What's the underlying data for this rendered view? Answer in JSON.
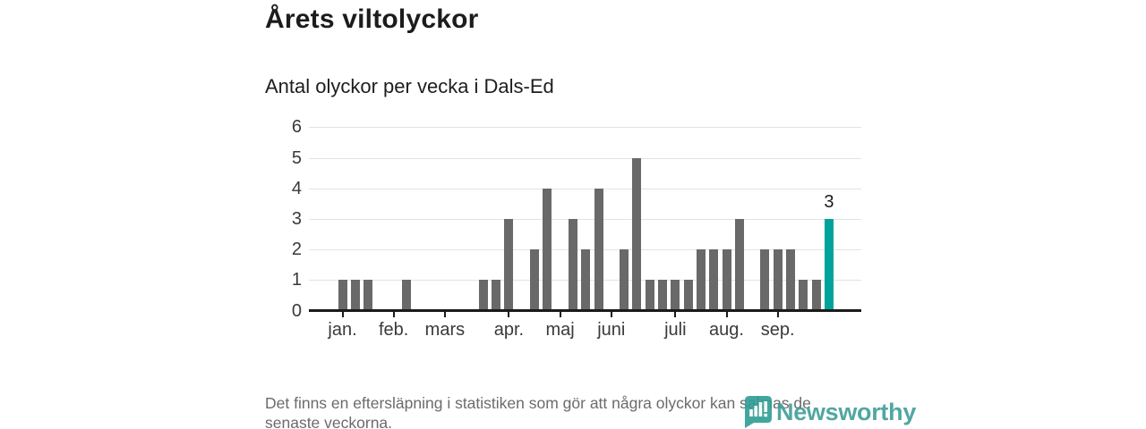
{
  "title": "Årets viltolyckor",
  "subtitle": "Antal olyckor per vecka i Dals-Ed",
  "footnote": {
    "line1": "Det finns en eftersläpning i statistiken som gör att några olyckor kan saknas de",
    "line2": "senaste veckorna."
  },
  "logo": {
    "text": "Newsworthy",
    "icon": "badge-with-bar-chart-and-exclamation"
  },
  "colors": {
    "bar": "#696969",
    "highlight": "#00a39b",
    "axis_line": "#1a1a1a",
    "gridline": "#e3e3e3",
    "tick_label": "#3a3a3a",
    "value_label": "#1a1a1a",
    "footnote_text": "#6b6b6b",
    "logo_teal": "#3f9e97",
    "logo_icon_teal": "#2f9d94"
  },
  "chart_data": {
    "type": "bar",
    "title": "Årets viltolyckor",
    "subtitle": "Antal olyckor per vecka i Dals-Ed",
    "x_unit": "week of year (vecka)",
    "first_week": 1,
    "values": [
      1,
      1,
      1,
      0,
      0,
      1,
      0,
      0,
      0,
      0,
      0,
      1,
      1,
      3,
      0,
      2,
      4,
      0,
      3,
      2,
      4,
      0,
      2,
      5,
      1,
      1,
      1,
      1,
      2,
      2,
      2,
      3,
      0,
      2,
      2,
      2,
      1,
      1,
      3
    ],
    "month_ticks": [
      {
        "label": "jan.",
        "week": 1
      },
      {
        "label": "feb.",
        "week": 5
      },
      {
        "label": "mars",
        "week": 9
      },
      {
        "label": "apr.",
        "week": 14
      },
      {
        "label": "maj",
        "week": 18
      },
      {
        "label": "juni",
        "week": 22
      },
      {
        "label": "juli",
        "week": 27
      },
      {
        "label": "aug.",
        "week": 31
      },
      {
        "label": "sep.",
        "week": 35
      }
    ],
    "ylim": [
      0,
      6
    ],
    "yticks": [
      0,
      1,
      2,
      3,
      4,
      5,
      6
    ],
    "grid": "horizontal-only",
    "legend": "none",
    "highlight": {
      "week": 39,
      "value": 3,
      "label": "3"
    }
  }
}
